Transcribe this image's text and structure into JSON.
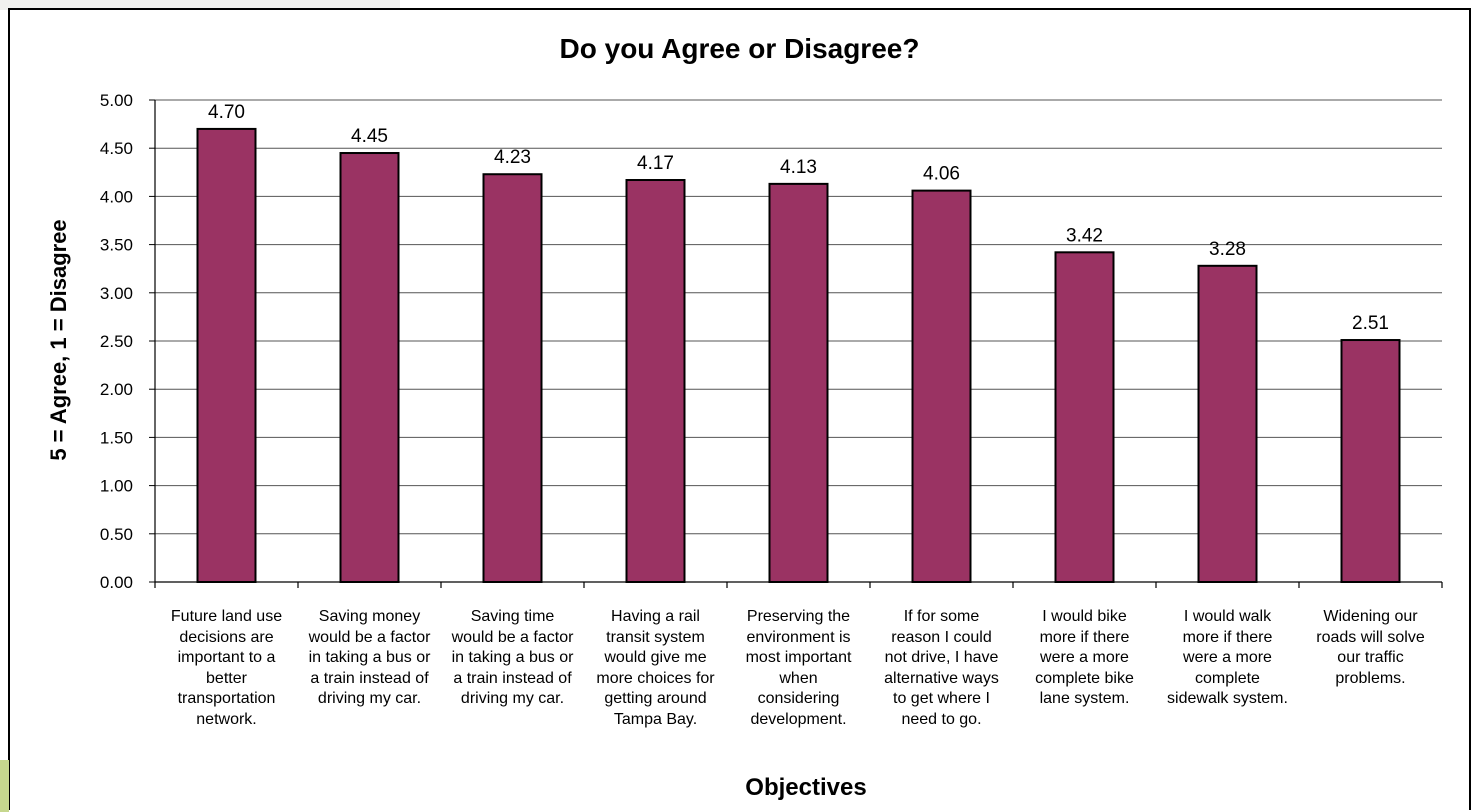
{
  "colors": {
    "bar": "#9a3363",
    "bar_stroke": "#000000",
    "grid": "#555555",
    "accent_side": "#c6d78e"
  },
  "chart_data": {
    "type": "bar",
    "title": "Do you Agree or Disagree?",
    "xlabel": "Objectives",
    "ylabel": "5 = Agree, 1 = Disagree",
    "ylim": [
      0,
      5
    ],
    "yticks": [
      "0.00",
      "0.50",
      "1.00",
      "1.50",
      "2.00",
      "2.50",
      "3.00",
      "3.50",
      "4.00",
      "4.50",
      "5.00"
    ],
    "grid": true,
    "legend": "none",
    "categories": [
      [
        "Future land use",
        "decisions are",
        "important to a",
        "better",
        "transportation",
        "network."
      ],
      [
        "Saving money",
        "would be a factor",
        "in taking a bus or",
        "a train instead of",
        "driving my car."
      ],
      [
        "Saving time",
        "would be a factor",
        "in taking a bus or",
        "a train instead of",
        "driving my car."
      ],
      [
        "Having a rail",
        "transit system",
        "would give me",
        "more choices for",
        "getting around",
        "Tampa Bay."
      ],
      [
        "Preserving the",
        "environment is",
        "most important",
        "when",
        "considering",
        "development."
      ],
      [
        "If for some",
        "reason I could",
        "not drive, I have",
        "alternative ways",
        "to get where I",
        "need to go."
      ],
      [
        "I would bike",
        "more if there",
        "were a more",
        "complete bike",
        "lane system."
      ],
      [
        "I would walk",
        "more if there",
        "were a more",
        "complete",
        "sidewalk system."
      ],
      [
        "Widening our",
        "roads will solve",
        "our traffic",
        "problems."
      ]
    ],
    "values": [
      4.7,
      4.45,
      4.23,
      4.17,
      4.13,
      4.06,
      3.42,
      3.28,
      2.51
    ],
    "value_labels": [
      "4.70",
      "4.45",
      "4.23",
      "4.17",
      "4.13",
      "4.06",
      "3.42",
      "3.28",
      "2.51"
    ]
  }
}
